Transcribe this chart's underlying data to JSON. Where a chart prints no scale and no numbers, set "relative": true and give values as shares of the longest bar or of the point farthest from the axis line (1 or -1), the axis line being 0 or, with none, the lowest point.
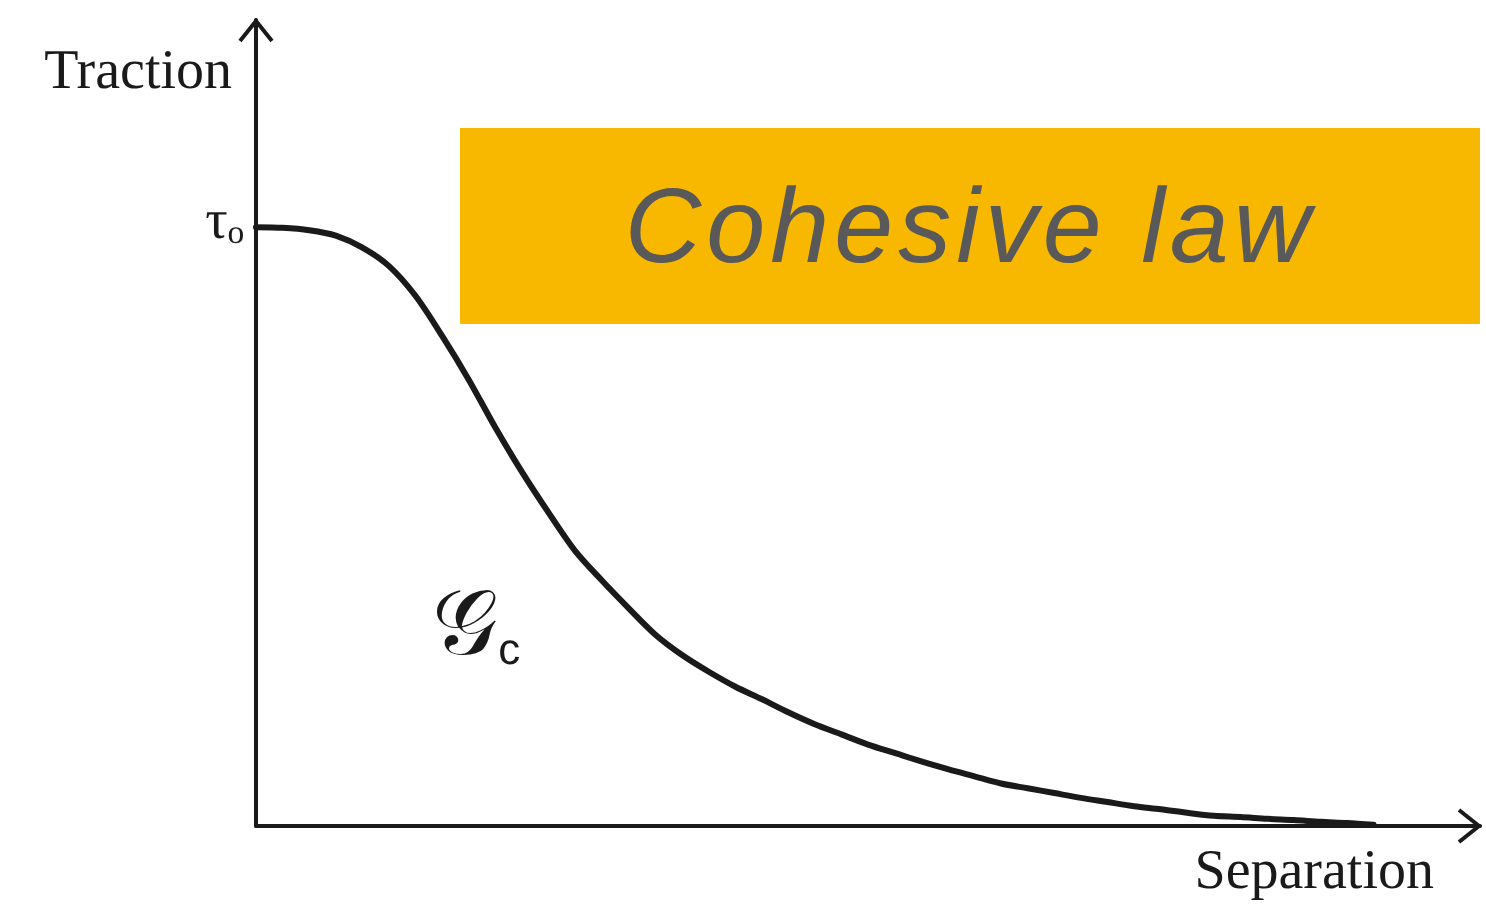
{
  "chart_data": {
    "type": "line",
    "title": "Cohesive law",
    "xlabel": "Separation",
    "ylabel": "Traction",
    "relative": true,
    "categories": [
      null,
      null,
      null,
      null,
      null,
      null,
      null,
      null,
      null,
      null,
      null,
      null,
      null,
      null,
      null,
      null,
      null,
      null,
      null,
      null,
      null,
      null,
      null,
      null,
      null,
      null,
      null,
      null,
      null,
      null,
      null,
      null,
      null,
      null,
      null,
      null,
      null,
      null,
      null,
      null,
      null,
      null,
      null,
      null,
      null,
      null,
      null
    ],
    "values": [
      1,
      0.999,
      0.995,
      0.986,
      0.966,
      0.935,
      0.885,
      0.818,
      0.745,
      0.665,
      0.591,
      0.523,
      0.459,
      0.41,
      0.364,
      0.32,
      0.286,
      0.258,
      0.233,
      0.212,
      0.19,
      0.17,
      0.153,
      0.136,
      0.122,
      0.108,
      0.095,
      0.083,
      0.071,
      0.063,
      0.055,
      0.047,
      0.04,
      0.033,
      0.028,
      0.022,
      0.017,
      0.015,
      0.012,
      0.01,
      0.007,
      0.005,
      0.002,
      null,
      null,
      null,
      null
    ],
    "color": "#1a1a1a",
    "marker": "none",
    "line_style": "solid",
    "annotations": [
      "τₒ",
      "𝒢$_{c}$"
    ]
  }
}
